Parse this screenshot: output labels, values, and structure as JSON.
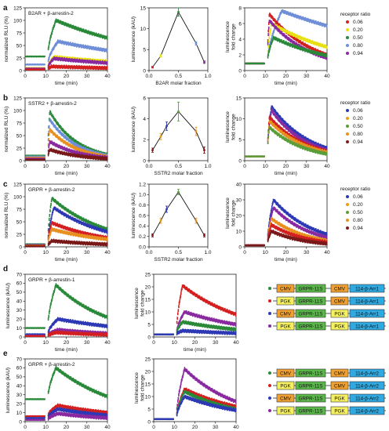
{
  "colors": {
    "c006": "#d32020",
    "c020": "#e8e010",
    "c050": "#2a8a3a",
    "c080": "#6f8fd8",
    "c094": "#8a2aa0",
    "ssr006": "#2e39b5",
    "ssr020": "#e89020",
    "ssr050": "#5a9e3a",
    "ssr080": "#e8a010",
    "ssr094": "#7a1a1a",
    "cmv": "#f0a030",
    "pgk": "#f5f060",
    "grpr": "#5ab84a",
    "arr": "#30a8e0",
    "dot_green": "#2a8a3a",
    "dot_red": "#d32020",
    "dot_blue": "#2e39b5",
    "dot_purple": "#8a2aa0"
  },
  "panels": [
    {
      "letter": "a",
      "label": "B2AR + β-arrestin-2",
      "xlabel_mid": "B2AR molar fraction"
    },
    {
      "letter": "b",
      "label": "SSTR2 + β-arrestin-2",
      "xlabel_mid": "SSTR2 molar fraction"
    },
    {
      "letter": "c",
      "label": "GRPR + β-arrestin-2",
      "xlabel_mid": "SSTR2 molar fraction"
    },
    {
      "letter": "d",
      "label": "GRPR + β-arrestin-1"
    },
    {
      "letter": "e",
      "label": "GRPR + β-arrestin-2"
    }
  ],
  "common": {
    "time_label": "time (min)",
    "norm_label": "normalized RLU (%)",
    "lum_label": "luminescence (kAU)",
    "fold_label_1": "luminescence",
    "fold_label_2": "fold change",
    "legend_title": "receptor ratio",
    "legend_entries": [
      "0.06",
      "0.20",
      "0.50",
      "0.80",
      "0.94"
    ]
  },
  "constructs": {
    "d": [
      {
        "p1": "CMV",
        "r": "GRPR-11S",
        "p2": "CMV",
        "a": "114-β-Arr1"
      },
      {
        "p1": "PGK",
        "r": "GRPR-11S",
        "p2": "CMV",
        "a": "114-β-Arr1"
      },
      {
        "p1": "CMV",
        "r": "GRPR-11S",
        "p2": "PGK",
        "a": "114-β-Arr1"
      },
      {
        "p1": "PGK",
        "r": "GRPR-11S",
        "p2": "PGK",
        "a": "114-β-Arr1"
      }
    ],
    "e": [
      {
        "p1": "CMV",
        "r": "GRPR-11S",
        "p2": "CMV",
        "a": "114-β-Arr2"
      },
      {
        "p1": "PGK",
        "r": "GRPR-11S",
        "p2": "CMV",
        "a": "114-β-Arr2"
      },
      {
        "p1": "CMV",
        "r": "GRPR-11S",
        "p2": "PGK",
        "a": "114-β-Arr2"
      },
      {
        "p1": "PGK",
        "r": "GRPR-11S",
        "p2": "PGK",
        "a": "114-β-Arr2"
      }
    ]
  },
  "chart_data": [
    {
      "id": "a1",
      "type": "scatter",
      "xlim": [
        0,
        40
      ],
      "ylim": [
        0,
        125
      ],
      "xticks": [
        0,
        10,
        20,
        30,
        40
      ],
      "yticks": [
        0,
        25,
        50,
        75,
        100,
        125
      ],
      "series": [
        {
          "color_key": "c050",
          "pre": 28,
          "peak": 100,
          "end": 65,
          "peak_t": 15
        },
        {
          "color_key": "c080",
          "pre": 12,
          "peak": 58,
          "end": 40,
          "peak_t": 16
        },
        {
          "color_key": "c020",
          "pre": 5,
          "peak": 27,
          "end": 18,
          "peak_t": 14
        },
        {
          "color_key": "c094",
          "pre": 4,
          "peak": 24,
          "end": 15,
          "peak_t": 14
        },
        {
          "color_key": "c006",
          "pre": 2,
          "peak": 8,
          "end": 5,
          "peak_t": 13
        }
      ]
    },
    {
      "id": "a2",
      "type": "line",
      "xlim": [
        0,
        1
      ],
      "ylim": [
        0,
        15
      ],
      "xticks": [
        0,
        0.5,
        1
      ],
      "xticklabels": [
        "0.0",
        "0.5",
        "1.0"
      ],
      "yticks": [
        0,
        5,
        10,
        15
      ],
      "points": [
        {
          "x": 0.06,
          "y": 0.8,
          "err": 0.2,
          "color_key": "c006"
        },
        {
          "x": 0.2,
          "y": 3.5,
          "err": 0.3,
          "color_key": "c020"
        },
        {
          "x": 0.5,
          "y": 14.0,
          "err": 1.0,
          "color_key": "c050"
        },
        {
          "x": 0.8,
          "y": 6.5,
          "err": 0.4,
          "color_key": "c080"
        },
        {
          "x": 0.94,
          "y": 2.0,
          "err": 0.3,
          "color_key": "c094"
        }
      ]
    },
    {
      "id": "a3",
      "type": "scatter",
      "xlim": [
        0,
        40
      ],
      "ylim": [
        0,
        8
      ],
      "xticks": [
        0,
        10,
        20,
        30,
        40
      ],
      "yticks": [
        0,
        2,
        4,
        6,
        8
      ],
      "series": [
        {
          "color_key": "c080",
          "pre": 0.9,
          "peak": 7.6,
          "end": 5.7,
          "peak_t": 18
        },
        {
          "color_key": "c006",
          "pre": 0.9,
          "peak": 7.2,
          "end": 2.0,
          "peak_t": 12
        },
        {
          "color_key": "c020",
          "pre": 0.9,
          "peak": 6.0,
          "end": 3.0,
          "peak_t": 13
        },
        {
          "color_key": "c094",
          "pre": 0.9,
          "peak": 6.4,
          "end": 1.6,
          "peak_t": 12
        },
        {
          "color_key": "c050",
          "pre": 0.9,
          "peak": 4.2,
          "end": 1.9,
          "peak_t": 14
        }
      ]
    },
    {
      "id": "b1",
      "type": "scatter",
      "xlim": [
        0,
        40
      ],
      "ylim": [
        0,
        125
      ],
      "xticks": [
        0,
        10,
        20,
        30,
        40
      ],
      "yticks": [
        0,
        25,
        50,
        75,
        100,
        125
      ],
      "series": [
        {
          "color_key": "c050",
          "pre": 10,
          "peak": 98,
          "end": 12,
          "peak_t": 12
        },
        {
          "color_key": "c080",
          "pre": 8,
          "peak": 82,
          "end": 10,
          "peak_t": 12
        },
        {
          "color_key": "ssr020",
          "pre": 6,
          "peak": 62,
          "end": 8,
          "peak_t": 12
        },
        {
          "color_key": "c094",
          "pre": 4,
          "peak": 38,
          "end": 6,
          "peak_t": 12
        },
        {
          "color_key": "ssr094",
          "pre": 2,
          "peak": 22,
          "end": 4,
          "peak_t": 12
        }
      ]
    },
    {
      "id": "b2",
      "type": "line",
      "xlim": [
        0,
        1
      ],
      "ylim": [
        0,
        6
      ],
      "xticks": [
        0,
        0.5,
        1
      ],
      "xticklabels": [
        "0.0",
        "0.5",
        "1.0"
      ],
      "yticks": [
        0,
        2,
        4,
        6
      ],
      "points": [
        {
          "x": 0.06,
          "y": 1.0,
          "err": 0.2,
          "color_key": "ssr094"
        },
        {
          "x": 0.2,
          "y": 2.3,
          "err": 0.3,
          "color_key": "ssr080"
        },
        {
          "x": 0.3,
          "y": 3.3,
          "err": 0.4,
          "color_key": "ssr006"
        },
        {
          "x": 0.5,
          "y": 4.7,
          "err": 0.9,
          "color_key": "ssr050"
        },
        {
          "x": 0.8,
          "y": 2.8,
          "err": 0.4,
          "color_key": "ssr020"
        },
        {
          "x": 0.94,
          "y": 1.0,
          "err": 0.3,
          "color_key": "ssr094"
        }
      ]
    },
    {
      "id": "b3",
      "type": "scatter",
      "xlim": [
        0,
        40
      ],
      "ylim": [
        0,
        15
      ],
      "xticks": [
        0,
        10,
        20,
        30,
        40
      ],
      "yticks": [
        0,
        5,
        10,
        15
      ],
      "series": [
        {
          "color_key": "ssr006",
          "pre": 1,
          "peak": 13,
          "end": 3,
          "peak_t": 13
        },
        {
          "color_key": "c094",
          "pre": 1,
          "peak": 12,
          "end": 2.5,
          "peak_t": 13
        },
        {
          "color_key": "c006",
          "pre": 1,
          "peak": 10.5,
          "end": 2.2,
          "peak_t": 12
        },
        {
          "color_key": "ssr020",
          "pre": 1,
          "peak": 9.5,
          "end": 2.0,
          "peak_t": 12
        },
        {
          "color_key": "ssr050",
          "pre": 1,
          "peak": 8,
          "end": 1.6,
          "peak_t": 12
        }
      ]
    },
    {
      "id": "c1",
      "type": "scatter",
      "xlim": [
        0,
        40
      ],
      "ylim": [
        0,
        125
      ],
      "xticks": [
        0,
        10,
        20,
        30,
        40
      ],
      "yticks": [
        0,
        25,
        50,
        75,
        100,
        125
      ],
      "series": [
        {
          "color_key": "c050",
          "pre": 5,
          "peak": 97,
          "end": 35,
          "peak_t": 13
        },
        {
          "color_key": "ssr006",
          "pre": 4,
          "peak": 78,
          "end": 30,
          "peak_t": 14
        },
        {
          "color_key": "c006",
          "pre": 3,
          "peak": 48,
          "end": 18,
          "peak_t": 13
        },
        {
          "color_key": "ssr020",
          "pre": 2,
          "peak": 35,
          "end": 15,
          "peak_t": 13
        },
        {
          "color_key": "ssr094",
          "pre": 1,
          "peak": 12,
          "end": 5,
          "peak_t": 13
        }
      ]
    },
    {
      "id": "c2",
      "type": "line",
      "xlim": [
        0,
        1
      ],
      "ylim": [
        0,
        1.2
      ],
      "xticks": [
        0,
        0.5,
        1
      ],
      "xticklabels": [
        "0.0",
        "0.5",
        "1.0"
      ],
      "yticks": [
        0,
        0.2,
        0.4,
        0.6,
        0.8,
        1.0,
        1.2
      ],
      "yticklabels": [
        "0.0",
        "0.2",
        "0.4",
        "0.6",
        "0.8",
        "1.0",
        "1.2"
      ],
      "points": [
        {
          "x": 0.06,
          "y": 0.22,
          "err": 0.03,
          "color_key": "ssr094"
        },
        {
          "x": 0.2,
          "y": 0.5,
          "err": 0.05,
          "color_key": "ssr080"
        },
        {
          "x": 0.3,
          "y": 0.72,
          "err": 0.06,
          "color_key": "ssr006"
        },
        {
          "x": 0.5,
          "y": 1.05,
          "err": 0.05,
          "color_key": "ssr050"
        },
        {
          "x": 0.8,
          "y": 0.5,
          "err": 0.05,
          "color_key": "ssr020"
        },
        {
          "x": 0.94,
          "y": 0.22,
          "err": 0.03,
          "color_key": "ssr094"
        }
      ]
    },
    {
      "id": "c3",
      "type": "scatter",
      "xlim": [
        0,
        40
      ],
      "ylim": [
        0,
        40
      ],
      "xticks": [
        0,
        10,
        20,
        30,
        40
      ],
      "yticks": [
        0,
        10,
        20,
        30,
        40
      ],
      "series": [
        {
          "color_key": "ssr006",
          "pre": 1,
          "peak": 30,
          "end": 8,
          "peak_t": 14
        },
        {
          "color_key": "c094",
          "pre": 1,
          "peak": 25,
          "end": 6,
          "peak_t": 14
        },
        {
          "color_key": "ssr020",
          "pre": 1,
          "peak": 18,
          "end": 4,
          "peak_t": 13
        },
        {
          "color_key": "c006",
          "pre": 1,
          "peak": 14,
          "end": 3,
          "peak_t": 13
        },
        {
          "color_key": "ssr094",
          "pre": 1,
          "peak": 10,
          "end": 2,
          "peak_t": 13
        }
      ]
    },
    {
      "id": "d1",
      "type": "scatter",
      "xlim": [
        0,
        40
      ],
      "ylim": [
        0,
        70
      ],
      "xticks": [
        0,
        10,
        20,
        30,
        40
      ],
      "yticks": [
        0,
        10,
        20,
        30,
        40,
        50,
        60,
        70
      ],
      "series": [
        {
          "color_key": "dot_green",
          "pre": 10,
          "peak": 58,
          "end": 22,
          "peak_t": 15
        },
        {
          "color_key": "dot_blue",
          "pre": 3,
          "peak": 20,
          "end": 12,
          "peak_t": 16
        },
        {
          "color_key": "dot_purple",
          "pre": 1.5,
          "peak": 8,
          "end": 4,
          "peak_t": 16
        },
        {
          "color_key": "dot_red",
          "pre": 1,
          "peak": 5,
          "end": 2.5,
          "peak_t": 15
        }
      ]
    },
    {
      "id": "d2",
      "type": "scatter",
      "xlim": [
        0,
        40
      ],
      "ylim": [
        0,
        25
      ],
      "xticks": [
        0,
        10,
        20,
        30,
        40
      ],
      "yticks": [
        0,
        5,
        10,
        15,
        20,
        25
      ],
      "series": [
        {
          "color_key": "dot_red",
          "pre": 1,
          "peak": 20.5,
          "end": 9,
          "peak_t": 14
        },
        {
          "color_key": "dot_purple",
          "pre": 1,
          "peak": 10,
          "end": 5,
          "peak_t": 15
        },
        {
          "color_key": "dot_green",
          "pre": 1,
          "peak": 6,
          "end": 3,
          "peak_t": 14
        },
        {
          "color_key": "dot_blue",
          "pre": 1,
          "peak": 2.5,
          "end": 1.5,
          "peak_t": 14
        }
      ]
    },
    {
      "id": "e1",
      "type": "scatter",
      "xlim": [
        0,
        40
      ],
      "ylim": [
        0,
        70
      ],
      "xticks": [
        0,
        10,
        20,
        30,
        40
      ],
      "yticks": [
        0,
        10,
        20,
        30,
        40,
        50,
        60,
        70
      ],
      "series": [
        {
          "color_key": "dot_green",
          "pre": 25,
          "peak": 60,
          "end": 28,
          "peak_t": 15
        },
        {
          "color_key": "dot_red",
          "pre": 6,
          "peak": 18,
          "end": 10,
          "peak_t": 16
        },
        {
          "color_key": "dot_blue",
          "pre": 4,
          "peak": 14,
          "end": 7,
          "peak_t": 16
        },
        {
          "color_key": "dot_purple",
          "pre": 2,
          "peak": 9,
          "end": 4,
          "peak_t": 16
        }
      ]
    },
    {
      "id": "e2",
      "type": "scatter",
      "xlim": [
        0,
        40
      ],
      "ylim": [
        0,
        25
      ],
      "xticks": [
        0,
        10,
        20,
        30,
        40
      ],
      "yticks": [
        0,
        5,
        10,
        15,
        20,
        25
      ],
      "series": [
        {
          "color_key": "dot_purple",
          "pre": 1,
          "peak": 21,
          "end": 8,
          "peak_t": 15
        },
        {
          "color_key": "dot_red",
          "pre": 1,
          "peak": 13,
          "end": 6,
          "peak_t": 15
        },
        {
          "color_key": "dot_green",
          "pre": 1,
          "peak": 12,
          "end": 5,
          "peak_t": 15
        },
        {
          "color_key": "dot_blue",
          "pre": 1,
          "peak": 10,
          "end": 4.5,
          "peak_t": 15
        }
      ]
    }
  ]
}
